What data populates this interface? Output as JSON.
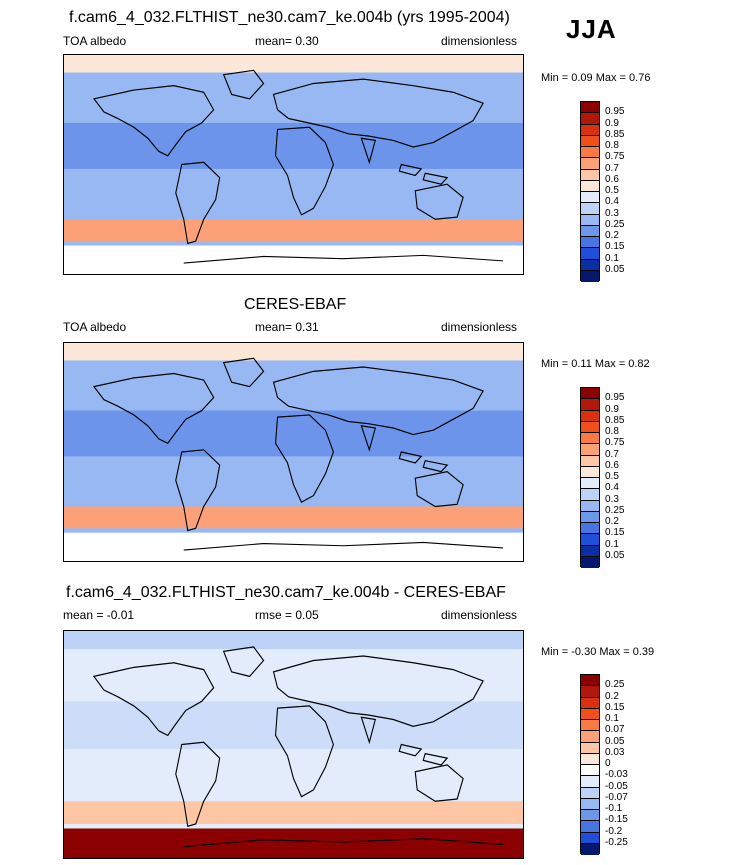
{
  "season": "JJA",
  "panels": [
    {
      "title": "f.cam6_4_032.FLTHIST_ne30.cam7_ke.004b (yrs 1995-2004)",
      "left_label": "TOA albedo",
      "center_label": "mean=   0.30",
      "right_label": "dimensionless",
      "minmax": "Min =   0.09 Max =   0.76",
      "colorbar": {
        "labels": [
          "0.95",
          "0.9",
          "0.85",
          "0.8",
          "0.75",
          "0.7",
          "0.6",
          "0.5",
          "0.4",
          "0.3",
          "0.25",
          "0.2",
          "0.15",
          "0.1",
          "0.05"
        ],
        "colors": [
          "#8b0000",
          "#b2170b",
          "#d9300f",
          "#f14f1a",
          "#f97a45",
          "#fca177",
          "#fdc7a6",
          "#fde7d8",
          "#e2ecfb",
          "#bcd2f7",
          "#97b8f2",
          "#6d98ea",
          "#4776e3",
          "#1f4fd9",
          "#0a2fa3",
          "#06186e"
        ]
      },
      "map": {
        "base": "#97b8f2",
        "north_band": "#fde7d8",
        "south_band": "#fca177",
        "south_ice": "#ffffff"
      }
    },
    {
      "title": "CERES-EBAF",
      "left_label": "TOA albedo",
      "center_label": "mean=   0.31",
      "right_label": "dimensionless",
      "minmax": "Min =   0.11 Max =   0.82",
      "colorbar": {
        "labels": [
          "0.95",
          "0.9",
          "0.85",
          "0.8",
          "0.75",
          "0.7",
          "0.6",
          "0.5",
          "0.4",
          "0.3",
          "0.25",
          "0.2",
          "0.15",
          "0.1",
          "0.05"
        ],
        "colors": [
          "#8b0000",
          "#b2170b",
          "#d9300f",
          "#f14f1a",
          "#f97a45",
          "#fca177",
          "#fdc7a6",
          "#fde7d8",
          "#e2ecfb",
          "#bcd2f7",
          "#97b8f2",
          "#6d98ea",
          "#4776e3",
          "#1f4fd9",
          "#0a2fa3",
          "#06186e"
        ]
      },
      "map": {
        "base": "#97b8f2",
        "north_band": "#fde7d8",
        "south_band": "#fca177",
        "south_ice": "#ffffff"
      }
    },
    {
      "title": "f.cam6_4_032.FLTHIST_ne30.cam7_ke.004b - CERES-EBAF",
      "left_label": "mean =  -0.01",
      "center_label": "rmse =   0.05",
      "right_label": "dimensionless",
      "minmax": "Min =  -0.30 Max =   0.39",
      "colorbar": {
        "labels": [
          "0.25",
          "0.2",
          "0.15",
          "0.1",
          "0.07",
          "0.05",
          "0.03",
          "0",
          "-0.03",
          "-0.05",
          "-0.07",
          "-0.1",
          "-0.15",
          "-0.2",
          "-0.25"
        ],
        "colors": [
          "#8b0000",
          "#b2170b",
          "#d9300f",
          "#f14f1a",
          "#f97a45",
          "#fca177",
          "#fdc7a6",
          "#fde7d8",
          "#ffffff",
          "#e2ecfb",
          "#bcd2f7",
          "#97b8f2",
          "#6d98ea",
          "#4776e3",
          "#1f4fd9",
          "#06186e"
        ]
      },
      "map": {
        "base": "#e2ecfb",
        "north_band": "#bcd2f7",
        "south_band": "#fdc7a6",
        "south_ice": "#8b0000"
      }
    }
  ]
}
